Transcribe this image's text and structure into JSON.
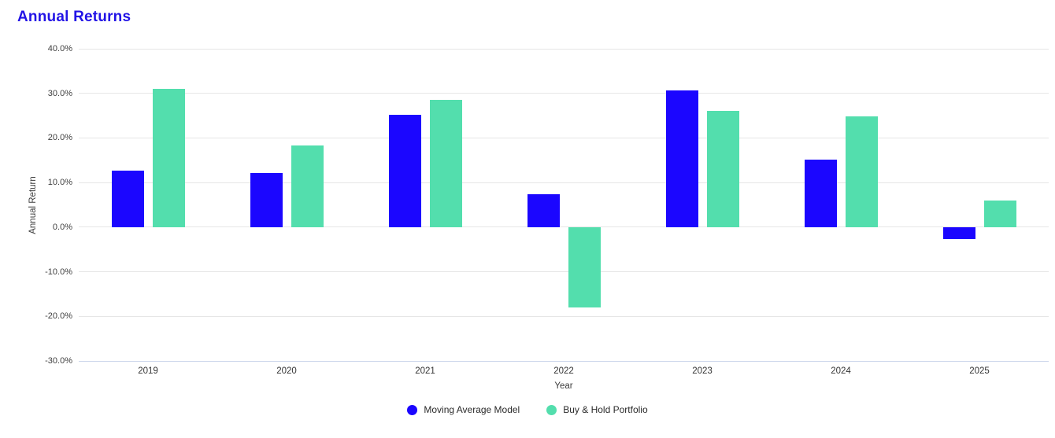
{
  "page": {
    "background": "#ffffff"
  },
  "chart_data": {
    "type": "bar",
    "title": "Annual Returns",
    "title_color": "#2213e6",
    "xlabel": "Year",
    "ylabel": "Annual Return",
    "categories": [
      "2019",
      "2020",
      "2021",
      "2022",
      "2023",
      "2024",
      "2025"
    ],
    "series": [
      {
        "name": "Moving Average Model",
        "color": "#1b06ff",
        "values": [
          12.7,
          12.2,
          25.2,
          7.4,
          30.6,
          15.1,
          -2.6
        ]
      },
      {
        "name": "Buy & Hold Portfolio",
        "color": "#53dead",
        "values": [
          31.0,
          18.3,
          28.5,
          -18.0,
          26.0,
          24.8,
          5.9
        ]
      }
    ],
    "ylim": [
      -30,
      40
    ],
    "ytick_step": 10,
    "ytick_labels": [
      "40.0%",
      "30.0%",
      "20.0%",
      "10.0%",
      "0.0%",
      "-10.0%",
      "-20.0%",
      "-30.0%"
    ],
    "grid": true,
    "gridline_color": "#e6e6e6",
    "axisline_color": "#ccd6eb",
    "legend_position": "bottom"
  }
}
